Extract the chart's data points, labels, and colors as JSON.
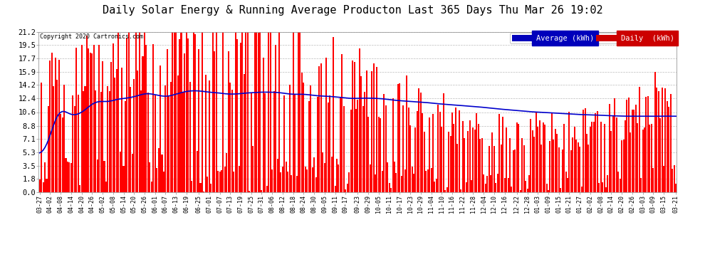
{
  "title": "Daily Solar Energy & Running Average Producton Last 365 Days Thu Mar 26 19:02",
  "copyright_text": "Copyright 2020 Cartronics.com",
  "bar_color": "#ff0000",
  "avg_line_color": "#0000cc",
  "background_color": "#ffffff",
  "plot_bg_color": "#ffffff",
  "yticks": [
    0.0,
    1.8,
    3.5,
    5.3,
    7.1,
    8.8,
    10.6,
    12.4,
    14.2,
    15.9,
    17.7,
    19.5,
    21.2
  ],
  "ymax": 21.2,
  "ymin": 0.0,
  "legend_avg_label": "Average (kWh)",
  "legend_daily_label": "Daily  (kWh)",
  "legend_avg_bg": "#0000bb",
  "legend_daily_bg": "#cc0000",
  "title_fontsize": 11,
  "xlabel_fontsize": 6,
  "ylabel_fontsize": 7.5,
  "n_days": 365,
  "xtick_labels": [
    "03-27",
    "04-02",
    "04-08",
    "04-14",
    "04-20",
    "04-26",
    "05-02",
    "05-08",
    "05-14",
    "05-20",
    "05-26",
    "06-01",
    "06-07",
    "06-13",
    "06-19",
    "06-25",
    "07-01",
    "07-07",
    "07-13",
    "07-19",
    "07-25",
    "07-31",
    "08-06",
    "08-12",
    "08-18",
    "08-24",
    "08-30",
    "09-05",
    "09-11",
    "09-17",
    "09-23",
    "09-29",
    "10-05",
    "10-11",
    "10-17",
    "10-23",
    "10-29",
    "11-04",
    "11-10",
    "11-16",
    "11-22",
    "11-28",
    "12-04",
    "12-10",
    "12-16",
    "12-22",
    "12-28",
    "01-03",
    "01-09",
    "01-15",
    "01-21",
    "01-27",
    "02-02",
    "02-08",
    "02-14",
    "02-20",
    "02-26",
    "03-03",
    "03-09",
    "03-15",
    "03-21"
  ]
}
